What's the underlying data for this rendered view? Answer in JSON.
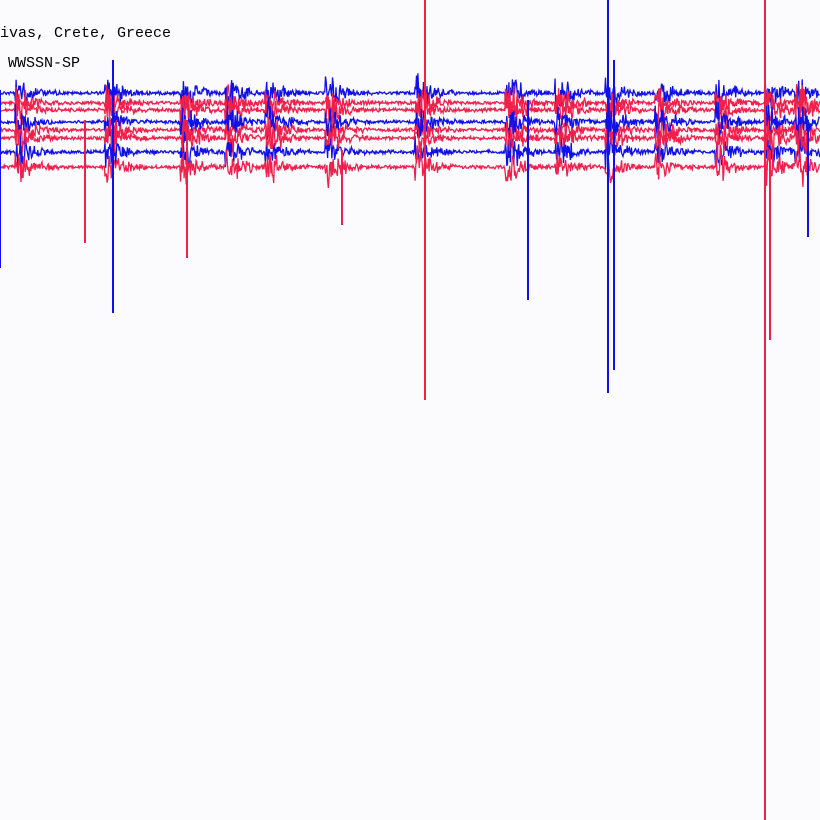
{
  "header": {
    "station": "ivas, Crete, Greece",
    "instrument": "WWSSN-SP"
  }
}
